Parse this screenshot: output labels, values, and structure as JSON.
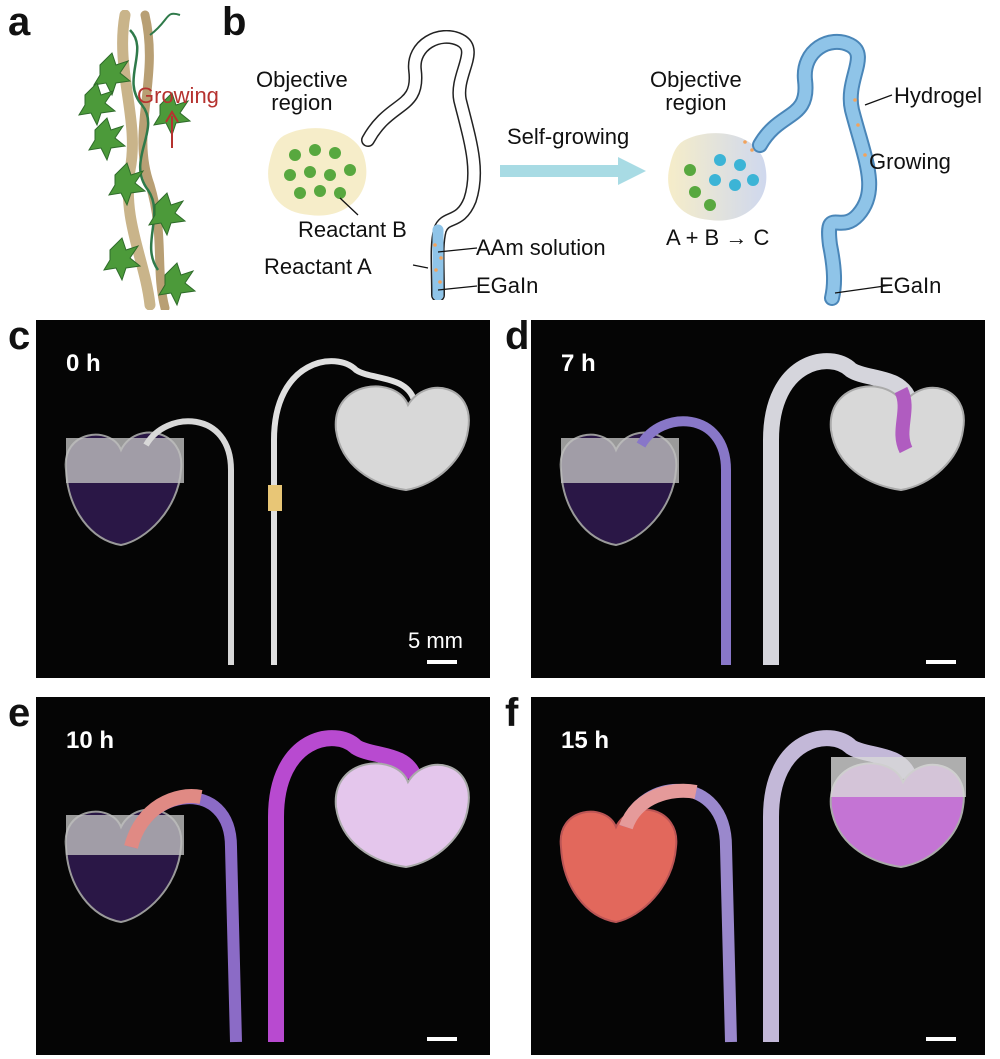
{
  "panels": {
    "a": {
      "label": "a",
      "growing": "Growing"
    },
    "b": {
      "label": "b",
      "left": {
        "objective_region": "Objective\nregion",
        "reactant_b": "Reactant B",
        "aam_solution": "AAm solution",
        "reactant_a": "Reactant A",
        "egain": "EGaIn"
      },
      "arrow_label": "Self-growing",
      "right": {
        "objective_region": "Objective\nregion",
        "hydrogel": "Hydrogel",
        "growing": "Growing",
        "reaction": "A + B",
        "reaction_product": "C",
        "egain": "EGaIn"
      }
    },
    "c": {
      "label": "c",
      "time": "0 h",
      "scale": "5 mm"
    },
    "d": {
      "label": "d",
      "time": "7 h"
    },
    "e": {
      "label": "e",
      "time": "10 h"
    },
    "f": {
      "label": "f",
      "time": "15 h"
    }
  },
  "colors": {
    "growing_red": "#b5322f",
    "arrow_cyan": "#a8dbe4",
    "hydrogel_blue": "#8fc4e8",
    "leaf_green": "#4c9a3a",
    "vine_tan": "#c9b48a"
  }
}
